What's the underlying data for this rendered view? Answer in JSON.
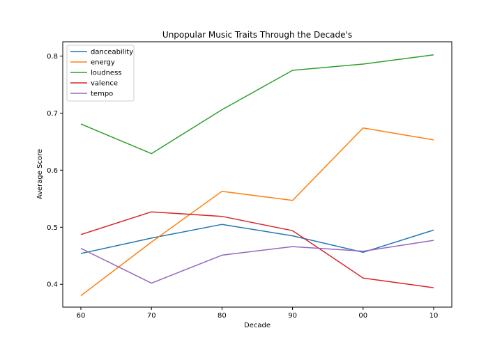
{
  "chart_data": {
    "type": "line",
    "title": "Unpopular Music Traits Through the Decade's",
    "xlabel": "Decade",
    "ylabel": "Average Score",
    "categories": [
      "60",
      "70",
      "80",
      "90",
      "00",
      "10"
    ],
    "ylim": [
      0.36,
      0.825
    ],
    "yticks": [
      0.4,
      0.5,
      0.6,
      0.7,
      0.8
    ],
    "ytick_labels": [
      "0.4",
      "0.5",
      "0.6",
      "0.7",
      "0.8"
    ],
    "grid": false,
    "legend_position": "top-left",
    "series": [
      {
        "name": "danceability",
        "color": "#1f77b4",
        "values": [
          0.454,
          0.481,
          0.505,
          0.485,
          0.456,
          0.495
        ]
      },
      {
        "name": "energy",
        "color": "#ff7f0e",
        "values": [
          0.38,
          0.474,
          0.563,
          0.547,
          0.674,
          0.653
        ]
      },
      {
        "name": "loudness",
        "color": "#2ca02c",
        "values": [
          0.681,
          0.629,
          0.706,
          0.775,
          0.786,
          0.802
        ]
      },
      {
        "name": "valence",
        "color": "#d62728",
        "values": [
          0.487,
          0.527,
          0.519,
          0.494,
          0.411,
          0.394
        ]
      },
      {
        "name": "tempo",
        "color": "#9467bd",
        "values": [
          0.463,
          0.402,
          0.451,
          0.466,
          0.458,
          0.477
        ]
      }
    ]
  }
}
